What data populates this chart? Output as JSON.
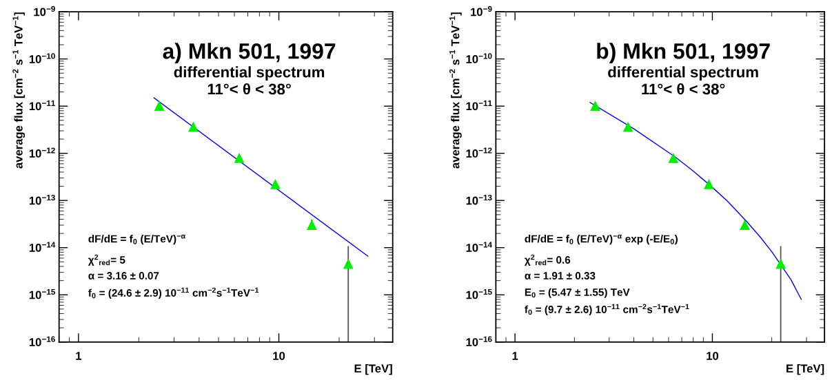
{
  "chart_data": [
    {
      "type": "scatter",
      "title": "a) Mkn 501, 1997",
      "subtitle": "differential spectrum\n11°< θ < 38°",
      "xlabel": "E [TeV]",
      "ylabel": "average flux [cm$^{−2}$ s$^{−1}$ TeV$^{−1}$]",
      "log": "xy",
      "grid": false,
      "legend": false,
      "xlim": [
        0.8,
        37
      ],
      "xticks": [
        1,
        10
      ],
      "ylim": [
        1e-16,
        1e-09
      ],
      "yticks": [
        {
          "value": 1e-16,
          "label": "10$^{−16}$"
        },
        {
          "value": 1e-15,
          "label": "10$^{−15}$"
        },
        {
          "value": 1e-14,
          "label": "10$^{−14}$"
        },
        {
          "value": 1e-13,
          "label": "10$^{−13}$"
        },
        {
          "value": 1e-12,
          "label": "10$^{−12}$"
        },
        {
          "value": 1e-11,
          "label": "10$^{−11}$"
        },
        {
          "value": 1e-10,
          "label": "10$^{−10}$"
        },
        {
          "value": 1e-09,
          "label": "10$^{−9}$"
        }
      ],
      "annotations": [
        "dF/dE = f$_{0}$ (E/TeV)$^{−α}$",
        "χ$^{2}$$_{red}$= 5",
        "α = 3.16 ± 0.07",
        "f$_{0}$ = (24.6 ± 2.9) 10$^{−11}$ cm$^{−2}$s$^{−1}$TeV$^{−1}$"
      ],
      "series": [
        {
          "color": "#00ee00",
          "marker": "triangle",
          "x": [
            2.53,
            3.74,
            6.34,
            9.6,
            14.6,
            22.2
          ],
          "values": [
            1e-11,
            3.6e-12,
            7.9e-13,
            2.2e-13,
            3e-14,
            4.5e-15
          ],
          "errors": [
            null,
            null,
            null,
            null,
            [
              2.5e-14,
              3.8e-14
            ],
            [
              1e-16,
              1.05e-14
            ]
          ]
        },
        {
          "type": "line",
          "color": "#0000ff",
          "marker": "none",
          "line_style": "solid",
          "x": [
            2.38,
            27.8
          ],
          "values": [
            1.5e-11,
            6.6e-15
          ]
        }
      ]
    },
    {
      "type": "scatter",
      "title": "b) Mkn 501, 1997",
      "subtitle": "differential spectrum\n11°< θ < 38°",
      "xlabel": "E [TeV]",
      "ylabel": "average flux [cm$^{−2}$ s$^{−1}$ TeV$^{−1}$]",
      "log": "xy",
      "grid": false,
      "legend": false,
      "xlim": [
        0.8,
        37
      ],
      "xticks": [
        1,
        10
      ],
      "ylim": [
        1e-16,
        1e-09
      ],
      "yticks": [
        {
          "value": 1e-16,
          "label": "10$^{−16}$"
        },
        {
          "value": 1e-15,
          "label": "10$^{−15}$"
        },
        {
          "value": 1e-14,
          "label": "10$^{−14}$"
        },
        {
          "value": 1e-13,
          "label": "10$^{−13}$"
        },
        {
          "value": 1e-12,
          "label": "10$^{−12}$"
        },
        {
          "value": 1e-11,
          "label": "10$^{−11}$"
        },
        {
          "value": 1e-10,
          "label": "10$^{−10}$"
        },
        {
          "value": 1e-09,
          "label": "10$^{−9}$"
        }
      ],
      "annotations": [
        "dF/dE = f$_{0}$ (E/TeV)$^{−α}$ exp (-E/E$_{0}$)",
        "χ$^{2}$$_{red}$= 0.6",
        "α = 1.91 ± 0.33",
        "E$_{0}$ = (5.47 ± 1.55) TeV",
        "f$_{0}$ = (9.7 ± 2.6) 10$^{−11}$ cm$^{−2}$s$^{−1}$TeV$^{−1}$"
      ],
      "series": [
        {
          "color": "#00ee00",
          "marker": "triangle",
          "x": [
            2.55,
            3.74,
            6.34,
            9.6,
            14.6,
            22.2
          ],
          "values": [
            1e-11,
            3.6e-12,
            7.9e-13,
            2.2e-13,
            3e-14,
            4.5e-15
          ],
          "errors": [
            null,
            null,
            null,
            null,
            [
              2.5e-14,
              3.8e-14
            ],
            [
              1e-16,
              1.05e-14
            ]
          ]
        },
        {
          "type": "line",
          "color": "#0000ff",
          "marker": "none",
          "line_style": "solid",
          "x": [
            2.4,
            4,
            6.5,
            8,
            10,
            12,
            15,
            17.5,
            20,
            25,
            28.2
          ],
          "values": [
            1.2e-11,
            3.3e-12,
            8.3e-13,
            4.2e-13,
            1.9e-13,
            9.4e-14,
            3.5e-14,
            1.67e-14,
            8.2e-15,
            2.1e-15,
            8e-16
          ]
        }
      ]
    }
  ]
}
